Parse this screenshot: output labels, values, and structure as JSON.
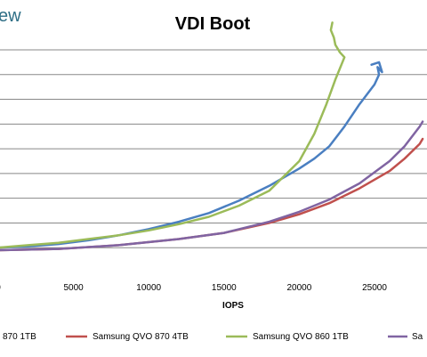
{
  "brand": "ew",
  "chart_data": {
    "type": "line",
    "title": "VDI Boot",
    "xlabel": "IOPS",
    "ylabel": "",
    "xlim": [
      0,
      28200
    ],
    "x_ticks": [
      0,
      5000,
      10000,
      15000,
      20000,
      25000
    ],
    "x_tick_labels": [
      "0",
      "5000",
      "10000",
      "15000",
      "20000",
      "25000"
    ],
    "y_gridlines": 9,
    "grid": true,
    "legend_position": "bottom",
    "legend_labels": [
      "870 1TB",
      "Samsung QVO 870 4TB",
      "Samsung QVO 860 1TB",
      "Sa"
    ],
    "series": [
      {
        "name": "870 1TB",
        "color": "#4a7fc1",
        "points": [
          [
            0,
            1.0
          ],
          [
            2000,
            1.05
          ],
          [
            4000,
            1.15
          ],
          [
            6000,
            1.3
          ],
          [
            8000,
            1.5
          ],
          [
            10000,
            1.75
          ],
          [
            12000,
            2.05
          ],
          [
            14000,
            2.4
          ],
          [
            16000,
            2.9
          ],
          [
            18000,
            3.5
          ],
          [
            20000,
            4.2
          ],
          [
            21000,
            4.6
          ],
          [
            22000,
            5.1
          ],
          [
            23000,
            5.9
          ],
          [
            24000,
            6.8
          ],
          [
            25000,
            7.6
          ],
          [
            25300,
            8.0
          ],
          [
            25200,
            8.3
          ],
          [
            25500,
            8.1
          ],
          [
            25300,
            8.5
          ],
          [
            24800,
            8.4
          ]
        ]
      },
      {
        "name": "Samsung QVO 870 4TB",
        "color": "#c0504d",
        "points": [
          [
            0,
            0.9
          ],
          [
            4000,
            0.95
          ],
          [
            8000,
            1.1
          ],
          [
            12000,
            1.35
          ],
          [
            15000,
            1.6
          ],
          [
            18000,
            2.0
          ],
          [
            20000,
            2.35
          ],
          [
            22000,
            2.8
          ],
          [
            24000,
            3.4
          ],
          [
            26000,
            4.1
          ],
          [
            27000,
            4.6
          ],
          [
            28000,
            5.2
          ],
          [
            28200,
            5.4
          ]
        ]
      },
      {
        "name": "Samsung QVO 860 1TB",
        "color": "#9bbb59",
        "points": [
          [
            0,
            1.0
          ],
          [
            2000,
            1.1
          ],
          [
            4000,
            1.2
          ],
          [
            6000,
            1.35
          ],
          [
            8000,
            1.5
          ],
          [
            10000,
            1.7
          ],
          [
            12000,
            1.95
          ],
          [
            14000,
            2.25
          ],
          [
            16000,
            2.7
          ],
          [
            18000,
            3.3
          ],
          [
            20000,
            4.5
          ],
          [
            21000,
            5.6
          ],
          [
            21800,
            6.8
          ],
          [
            22400,
            7.8
          ],
          [
            22800,
            8.4
          ],
          [
            23000,
            8.7
          ],
          [
            22700,
            8.9
          ],
          [
            22400,
            9.2
          ],
          [
            22300,
            9.5
          ],
          [
            22100,
            9.8
          ],
          [
            22200,
            10.1
          ]
        ]
      },
      {
        "name": "Sa",
        "color": "#8064a2",
        "points": [
          [
            0,
            0.9
          ],
          [
            4000,
            0.95
          ],
          [
            8000,
            1.1
          ],
          [
            12000,
            1.35
          ],
          [
            15000,
            1.6
          ],
          [
            18000,
            2.05
          ],
          [
            20000,
            2.45
          ],
          [
            22000,
            2.95
          ],
          [
            24000,
            3.6
          ],
          [
            26000,
            4.5
          ],
          [
            27000,
            5.1
          ],
          [
            28000,
            5.9
          ],
          [
            28200,
            6.1
          ]
        ]
      }
    ]
  }
}
